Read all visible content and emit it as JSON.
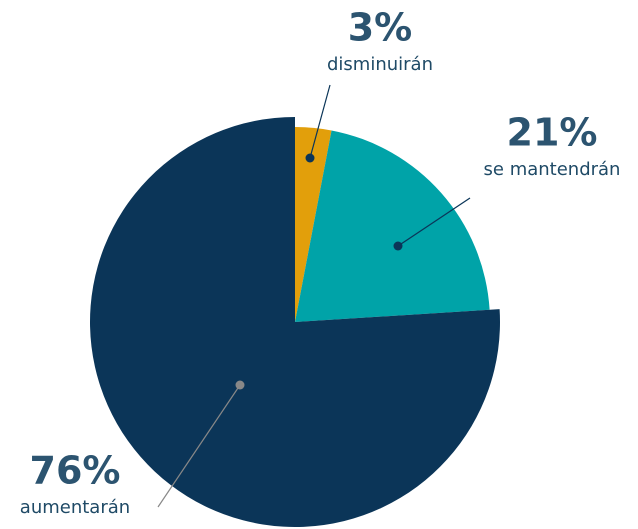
{
  "chart_data": {
    "type": "pie",
    "categories": [
      "disminuirán",
      "se mantendrán",
      "aumentarán"
    ],
    "values": [
      3,
      21,
      76
    ],
    "value_labels": [
      "3%",
      "21%",
      "76%"
    ],
    "colors": [
      "#e29f0b",
      "#00a3a8",
      "#0b3558"
    ]
  }
}
